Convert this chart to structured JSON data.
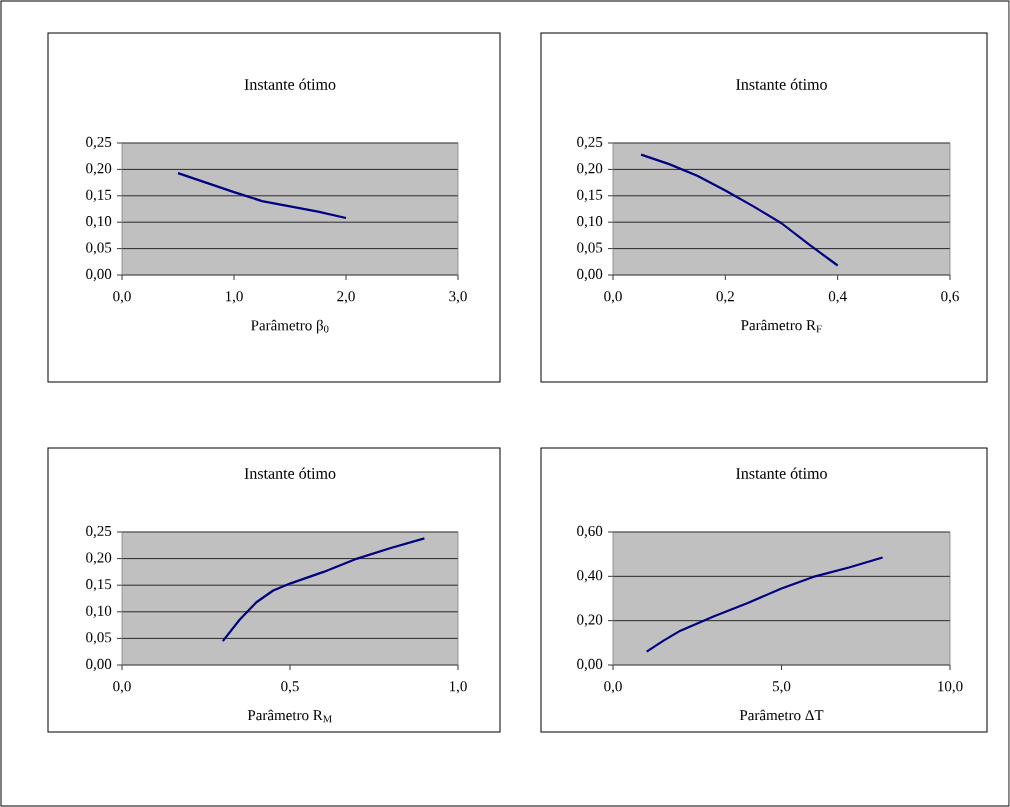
{
  "chart_data": [
    {
      "type": "line",
      "title": "Instante ótimo",
      "xlabel": "Parâmetro β$_{0}$",
      "color": "#000080",
      "grid": "y",
      "x": [
        0.5,
        0.75,
        1.0,
        1.25,
        1.5,
        1.75,
        2.0
      ],
      "values": [
        0.193,
        0.175,
        0.157,
        0.14,
        0.13,
        0.12,
        0.108
      ],
      "xlim": [
        0,
        3
      ],
      "xticks": [
        {
          "value": 0,
          "label": "0,0"
        },
        {
          "value": 1,
          "label": "1,0"
        },
        {
          "value": 2,
          "label": "2,0"
        },
        {
          "value": 3,
          "label": "3,0"
        }
      ],
      "ylim": [
        0,
        0.25
      ],
      "yticks": [
        {
          "value": 0,
          "label": "0,00"
        },
        {
          "value": 0.05,
          "label": "0,05"
        },
        {
          "value": 0.1,
          "label": "0,10"
        },
        {
          "value": 0.15,
          "label": "0,15"
        },
        {
          "value": 0.2,
          "label": "0,20"
        },
        {
          "value": 0.25,
          "label": "0,25"
        }
      ]
    },
    {
      "type": "line",
      "title": "Instante ótimo",
      "xlabel": "Parâmetro R$_{F}$",
      "color": "#000080",
      "grid": "y",
      "x": [
        0.05,
        0.1,
        0.15,
        0.2,
        0.25,
        0.3,
        0.35,
        0.4
      ],
      "values": [
        0.228,
        0.21,
        0.188,
        0.16,
        0.13,
        0.098,
        0.057,
        0.018
      ],
      "xlim": [
        0,
        0.6
      ],
      "xticks": [
        {
          "value": 0,
          "label": "0,0"
        },
        {
          "value": 0.2,
          "label": "0,2"
        },
        {
          "value": 0.4,
          "label": "0,4"
        },
        {
          "value": 0.6,
          "label": "0,6"
        }
      ],
      "ylim": [
        0,
        0.25
      ],
      "yticks": [
        {
          "value": 0,
          "label": "0,00"
        },
        {
          "value": 0.05,
          "label": "0,05"
        },
        {
          "value": 0.1,
          "label": "0,10"
        },
        {
          "value": 0.15,
          "label": "0,15"
        },
        {
          "value": 0.2,
          "label": "0,20"
        },
        {
          "value": 0.25,
          "label": "0,25"
        }
      ]
    },
    {
      "type": "line",
      "title": "Instante ótimo",
      "xlabel": "Parâmetro R$_{M}$",
      "color": "#000080",
      "grid": "y",
      "x": [
        0.3,
        0.35,
        0.4,
        0.45,
        0.5,
        0.6,
        0.7,
        0.8,
        0.9
      ],
      "values": [
        0.045,
        0.085,
        0.118,
        0.14,
        0.153,
        0.175,
        0.2,
        0.22,
        0.238
      ],
      "xlim": [
        0,
        1
      ],
      "xticks": [
        {
          "value": 0,
          "label": "0,0"
        },
        {
          "value": 0.5,
          "label": "0,5"
        },
        {
          "value": 1,
          "label": "1,0"
        }
      ],
      "ylim": [
        0,
        0.25
      ],
      "yticks": [
        {
          "value": 0,
          "label": "0,00"
        },
        {
          "value": 0.05,
          "label": "0,05"
        },
        {
          "value": 0.1,
          "label": "0,10"
        },
        {
          "value": 0.15,
          "label": "0,15"
        },
        {
          "value": 0.2,
          "label": "0,20"
        },
        {
          "value": 0.25,
          "label": "0,25"
        }
      ]
    },
    {
      "type": "line",
      "title": "Instante ótimo",
      "xlabel": "Parâmetro ΔT",
      "color": "#000080",
      "grid": "y",
      "x": [
        1,
        1.5,
        2,
        3,
        4,
        5,
        6,
        7,
        8
      ],
      "values": [
        0.06,
        0.11,
        0.155,
        0.22,
        0.28,
        0.345,
        0.4,
        0.44,
        0.485
      ],
      "xlim": [
        0,
        10
      ],
      "xticks": [
        {
          "value": 0,
          "label": "0,0"
        },
        {
          "value": 5,
          "label": "5,0"
        },
        {
          "value": 10,
          "label": "10,0"
        }
      ],
      "ylim": [
        0,
        0.6
      ],
      "yticks": [
        {
          "value": 0,
          "label": "0,00"
        },
        {
          "value": 0.2,
          "label": "0,20"
        },
        {
          "value": 0.4,
          "label": "0,40"
        },
        {
          "value": 0.6,
          "label": "0,60"
        }
      ]
    }
  ]
}
